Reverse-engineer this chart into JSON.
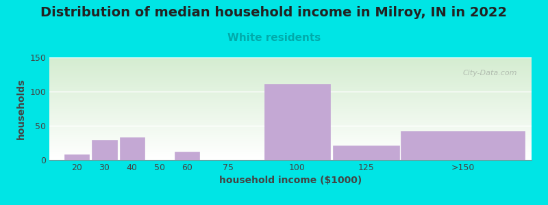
{
  "title": "Distribution of median household income in Milroy, IN in 2022",
  "subtitle": "White residents",
  "xlabel": "household income ($1000)",
  "ylabel": "households",
  "categories": [
    "20",
    "30",
    "40",
    "50",
    "60",
    "75",
    "100",
    "125",
    ">150"
  ],
  "x_positions": [
    20,
    30,
    40,
    50,
    60,
    75,
    100,
    125,
    160
  ],
  "values": [
    8,
    29,
    33,
    0,
    12,
    0,
    111,
    21,
    42
  ],
  "bar_widths": [
    9,
    9,
    9,
    9,
    9,
    9,
    24,
    24,
    45
  ],
  "bar_color": "#c4a8d4",
  "bar_edgecolor": "#c4a8d4",
  "background_color": "#00e5e5",
  "plot_bg_color_top": "#d4ecd0",
  "plot_bg_color_bottom": "#ffffff",
  "ylim": [
    0,
    150
  ],
  "xlim": [
    10,
    185
  ],
  "yticks": [
    0,
    50,
    100,
    150
  ],
  "xtick_positions": [
    20,
    30,
    40,
    50,
    60,
    75,
    100,
    125,
    160
  ],
  "xtick_labels": [
    "20",
    "30",
    "40",
    "50",
    "60",
    "75",
    "100",
    "125",
    ">150"
  ],
  "title_fontsize": 14,
  "subtitle_fontsize": 11,
  "subtitle_color": "#00aaaa",
  "axis_label_fontsize": 10,
  "tick_fontsize": 9,
  "watermark": "City-Data.com"
}
